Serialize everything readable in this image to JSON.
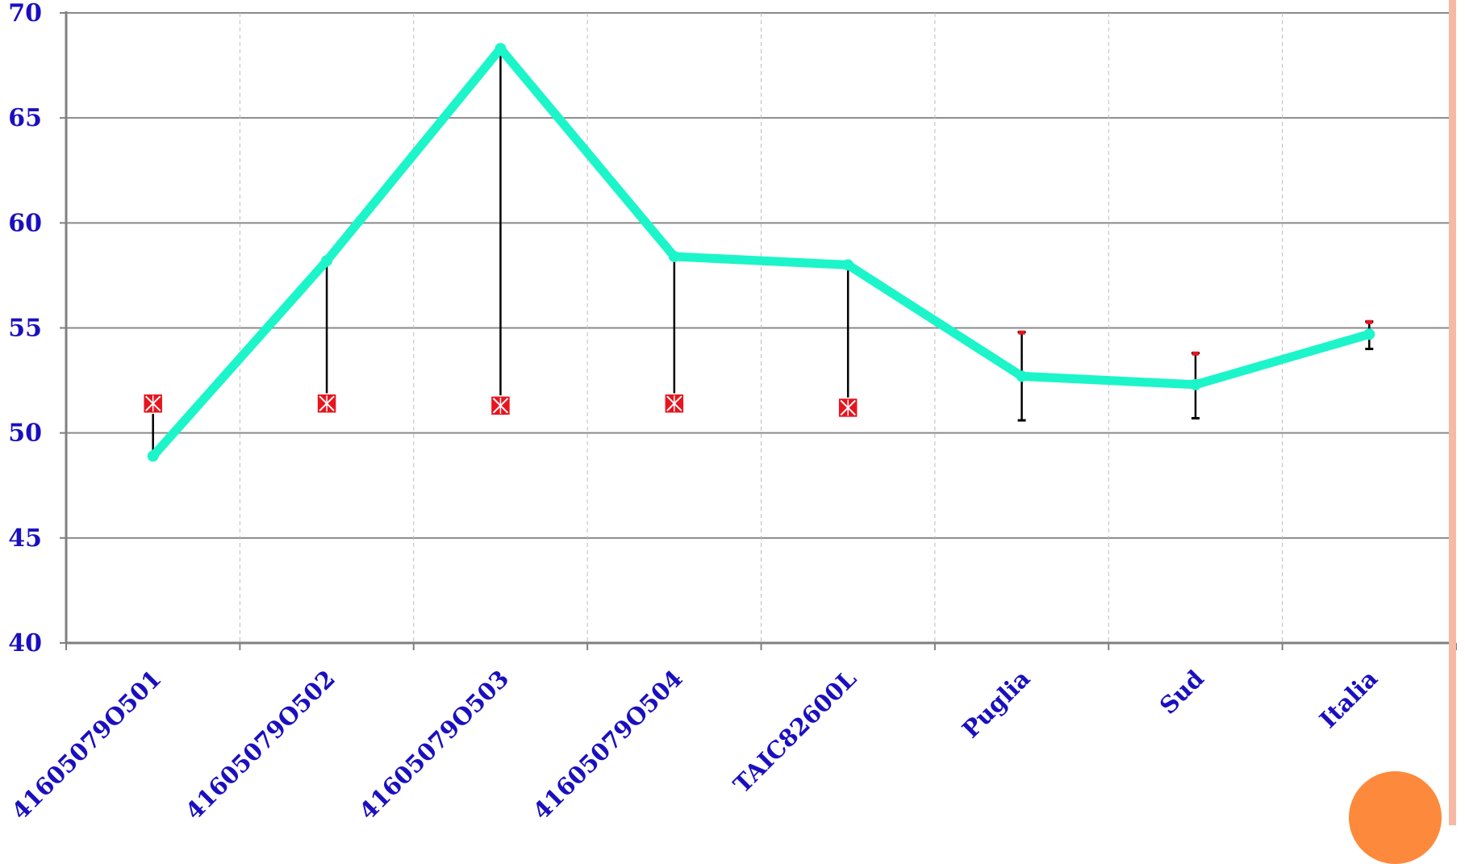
{
  "chart_data": {
    "type": "line",
    "categories": [
      "41605079O501",
      "41605079O502",
      "41605079O503",
      "41605079O504",
      "TAIC82600L",
      "Puglia",
      "Sud",
      "Italia"
    ],
    "series": [
      {
        "values": [
          48.9,
          58.2,
          68.3,
          58.4,
          58.0,
          52.7,
          52.3,
          54.7
        ],
        "color": "#1cf5c9"
      }
    ],
    "reference_markers": [
      51.4,
      51.4,
      51.3,
      51.4,
      51.2,
      54.8,
      53.8,
      55.3
    ],
    "error_bars": [
      null,
      null,
      null,
      null,
      null,
      {
        "low": 50.6,
        "high": 54.8
      },
      {
        "low": 50.7,
        "high": 53.8
      },
      {
        "low": 54.0,
        "high": 55.3
      }
    ],
    "ylim": [
      40,
      70
    ],
    "y_ticks": [
      40,
      45,
      50,
      55,
      60,
      65,
      70
    ],
    "title": "",
    "xlabel": "",
    "ylabel": "",
    "grid": {
      "horizontal": true,
      "vertical_dashed": true
    },
    "colors": {
      "axis_text": "#1a0fbf",
      "marker_fill": "#e8141e",
      "decor_bar": "#f6b9a4",
      "decor_circle": "#fd8a3c"
    }
  }
}
